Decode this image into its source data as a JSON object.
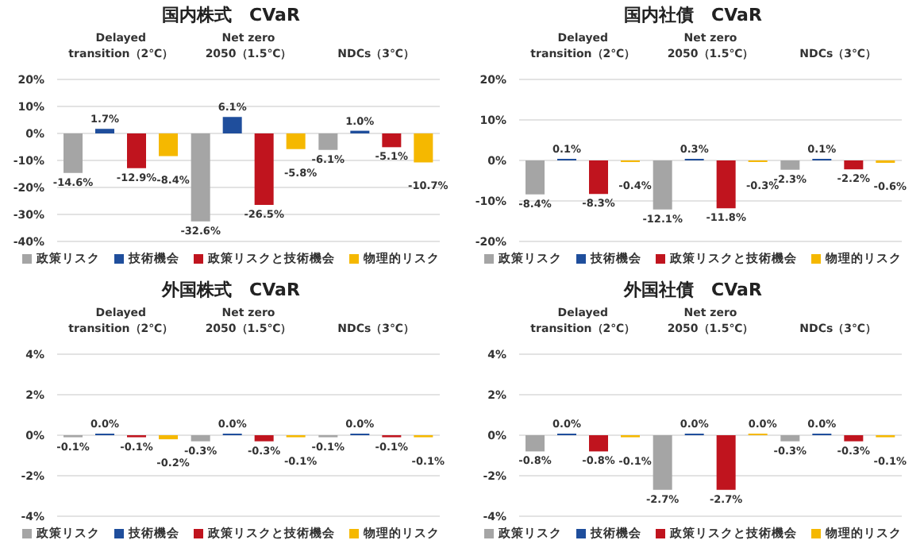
{
  "chart_data": [
    {
      "type": "bar",
      "title": "国内株式　CVaR",
      "categories": [
        "Delayed\ntransition（2℃）",
        "Net zero\n2050（1.5℃）",
        "NDCs（3℃）"
      ],
      "ylim": [
        -40,
        20
      ],
      "yticks": [
        {
          "value": -40,
          "label": "-40%"
        },
        {
          "value": -30,
          "label": "-30%"
        },
        {
          "value": -20,
          "label": "-20%"
        },
        {
          "value": -10,
          "label": "-10%"
        },
        {
          "value": 0,
          "label": "0%"
        },
        {
          "value": 10,
          "label": "10%"
        },
        {
          "value": 20,
          "label": "20%"
        }
      ],
      "grid": "y",
      "legend": "bottom",
      "series": [
        {
          "name": "政策リスク",
          "color": "#a5a5a5",
          "values": [
            -14.6,
            -32.6,
            -6.1
          ],
          "value_labels": [
            "-14.6%",
            "-32.6%",
            "-6.1%"
          ]
        },
        {
          "name": "技術機会",
          "color": "#1f4e9c",
          "values": [
            1.7,
            6.1,
            1.0
          ],
          "value_labels": [
            "1.7%",
            "6.1%",
            "1.0%"
          ]
        },
        {
          "name": "政策リスクと技術機会",
          "color": "#c0141e",
          "values": [
            -12.9,
            -26.5,
            -5.1
          ],
          "value_labels": [
            "-12.9%",
            "-26.5%",
            "-5.1%"
          ]
        },
        {
          "name": "物理的リスク",
          "color": "#f5b800",
          "values": [
            -8.4,
            -5.8,
            -10.7
          ],
          "value_labels": [
            "-8.4%",
            "-5.8%",
            "-10.7%"
          ]
        }
      ]
    },
    {
      "type": "bar",
      "title": "国内社債　CVaR",
      "categories": [
        "Delayed\ntransition（2℃）",
        "Net zero\n2050（1.5℃）",
        "NDCs（3℃）"
      ],
      "ylim": [
        -20,
        20
      ],
      "yticks": [
        {
          "value": -20,
          "label": "-20%"
        },
        {
          "value": -10,
          "label": "-10%"
        },
        {
          "value": 0,
          "label": "0%"
        },
        {
          "value": 10,
          "label": "10%"
        },
        {
          "value": 20,
          "label": "20%"
        }
      ],
      "grid": "y",
      "legend": "bottom",
      "series": [
        {
          "name": "政策リスク",
          "color": "#a5a5a5",
          "values": [
            -8.4,
            -12.1,
            -2.3
          ],
          "value_labels": [
            "-8.4%",
            "-12.1%",
            "-2.3%"
          ]
        },
        {
          "name": "技術機会",
          "color": "#1f4e9c",
          "values": [
            0.1,
            0.3,
            0.1
          ],
          "value_labels": [
            "0.1%",
            "0.3%",
            "0.1%"
          ]
        },
        {
          "name": "政策リスクと技術機会",
          "color": "#c0141e",
          "values": [
            -8.3,
            -11.8,
            -2.2
          ],
          "value_labels": [
            "-8.3%",
            "-11.8%",
            "-2.2%"
          ]
        },
        {
          "name": "物理的リスク",
          "color": "#f5b800",
          "values": [
            -0.4,
            -0.3,
            -0.6
          ],
          "value_labels": [
            "-0.4%",
            "-0.3%",
            "-0.6%"
          ]
        }
      ]
    },
    {
      "type": "bar",
      "title": "外国株式　CVaR",
      "categories": [
        "Delayed\ntransition（2℃）",
        "Net zero\n2050（1.5℃）",
        "NDCs（3℃）"
      ],
      "ylim": [
        -4,
        4
      ],
      "yticks": [
        {
          "value": -4,
          "label": "-4%"
        },
        {
          "value": -2,
          "label": "-2%"
        },
        {
          "value": 0,
          "label": "0%"
        },
        {
          "value": 2,
          "label": "2%"
        },
        {
          "value": 4,
          "label": "4%"
        }
      ],
      "grid": "y",
      "legend": "bottom",
      "series": [
        {
          "name": "政策リスク",
          "color": "#a5a5a5",
          "values": [
            -0.1,
            -0.3,
            -0.1
          ],
          "value_labels": [
            "-0.1%",
            "-0.3%",
            "-0.1%"
          ]
        },
        {
          "name": "技術機会",
          "color": "#1f4e9c",
          "values": [
            0.0,
            0.0,
            0.0
          ],
          "value_labels": [
            "0.0%",
            "0.0%",
            "0.0%"
          ]
        },
        {
          "name": "政策リスクと技術機会",
          "color": "#c0141e",
          "values": [
            -0.1,
            -0.3,
            -0.1
          ],
          "value_labels": [
            "-0.1%",
            "-0.3%",
            "-0.1%"
          ]
        },
        {
          "name": "物理的リスク",
          "color": "#f5b800",
          "values": [
            -0.2,
            -0.1,
            -0.1
          ],
          "value_labels": [
            "-0.2%",
            "-0.1%",
            "-0.1%"
          ]
        }
      ]
    },
    {
      "type": "bar",
      "title": "外国社債　CVaR",
      "categories": [
        "Delayed\ntransition（2℃）",
        "Net zero\n2050（1.5℃）",
        "NDCs（3℃）"
      ],
      "ylim": [
        -4,
        4
      ],
      "yticks": [
        {
          "value": -4,
          "label": "-4%"
        },
        {
          "value": -2,
          "label": "-2%"
        },
        {
          "value": 0,
          "label": "0%"
        },
        {
          "value": 2,
          "label": "2%"
        },
        {
          "value": 4,
          "label": "4%"
        }
      ],
      "grid": "y",
      "legend": "bottom",
      "series": [
        {
          "name": "政策リスク",
          "color": "#a5a5a5",
          "values": [
            -0.8,
            -2.7,
            -0.3
          ],
          "value_labels": [
            "-0.8%",
            "-2.7%",
            "-0.3%"
          ]
        },
        {
          "name": "技術機会",
          "color": "#1f4e9c",
          "values": [
            0.0,
            0.0,
            0.0
          ],
          "value_labels": [
            "0.0%",
            "0.0%",
            "0.0%"
          ]
        },
        {
          "name": "政策リスクと技術機会",
          "color": "#c0141e",
          "values": [
            -0.8,
            -2.7,
            -0.3
          ],
          "value_labels": [
            "-0.8%",
            "-2.7%",
            "-0.3%"
          ]
        },
        {
          "name": "物理的リスク",
          "color": "#f5b800",
          "values": [
            -0.1,
            0.0,
            -0.1
          ],
          "value_labels": [
            "-0.1%",
            "0.0%",
            "-0.1%"
          ]
        }
      ]
    }
  ]
}
